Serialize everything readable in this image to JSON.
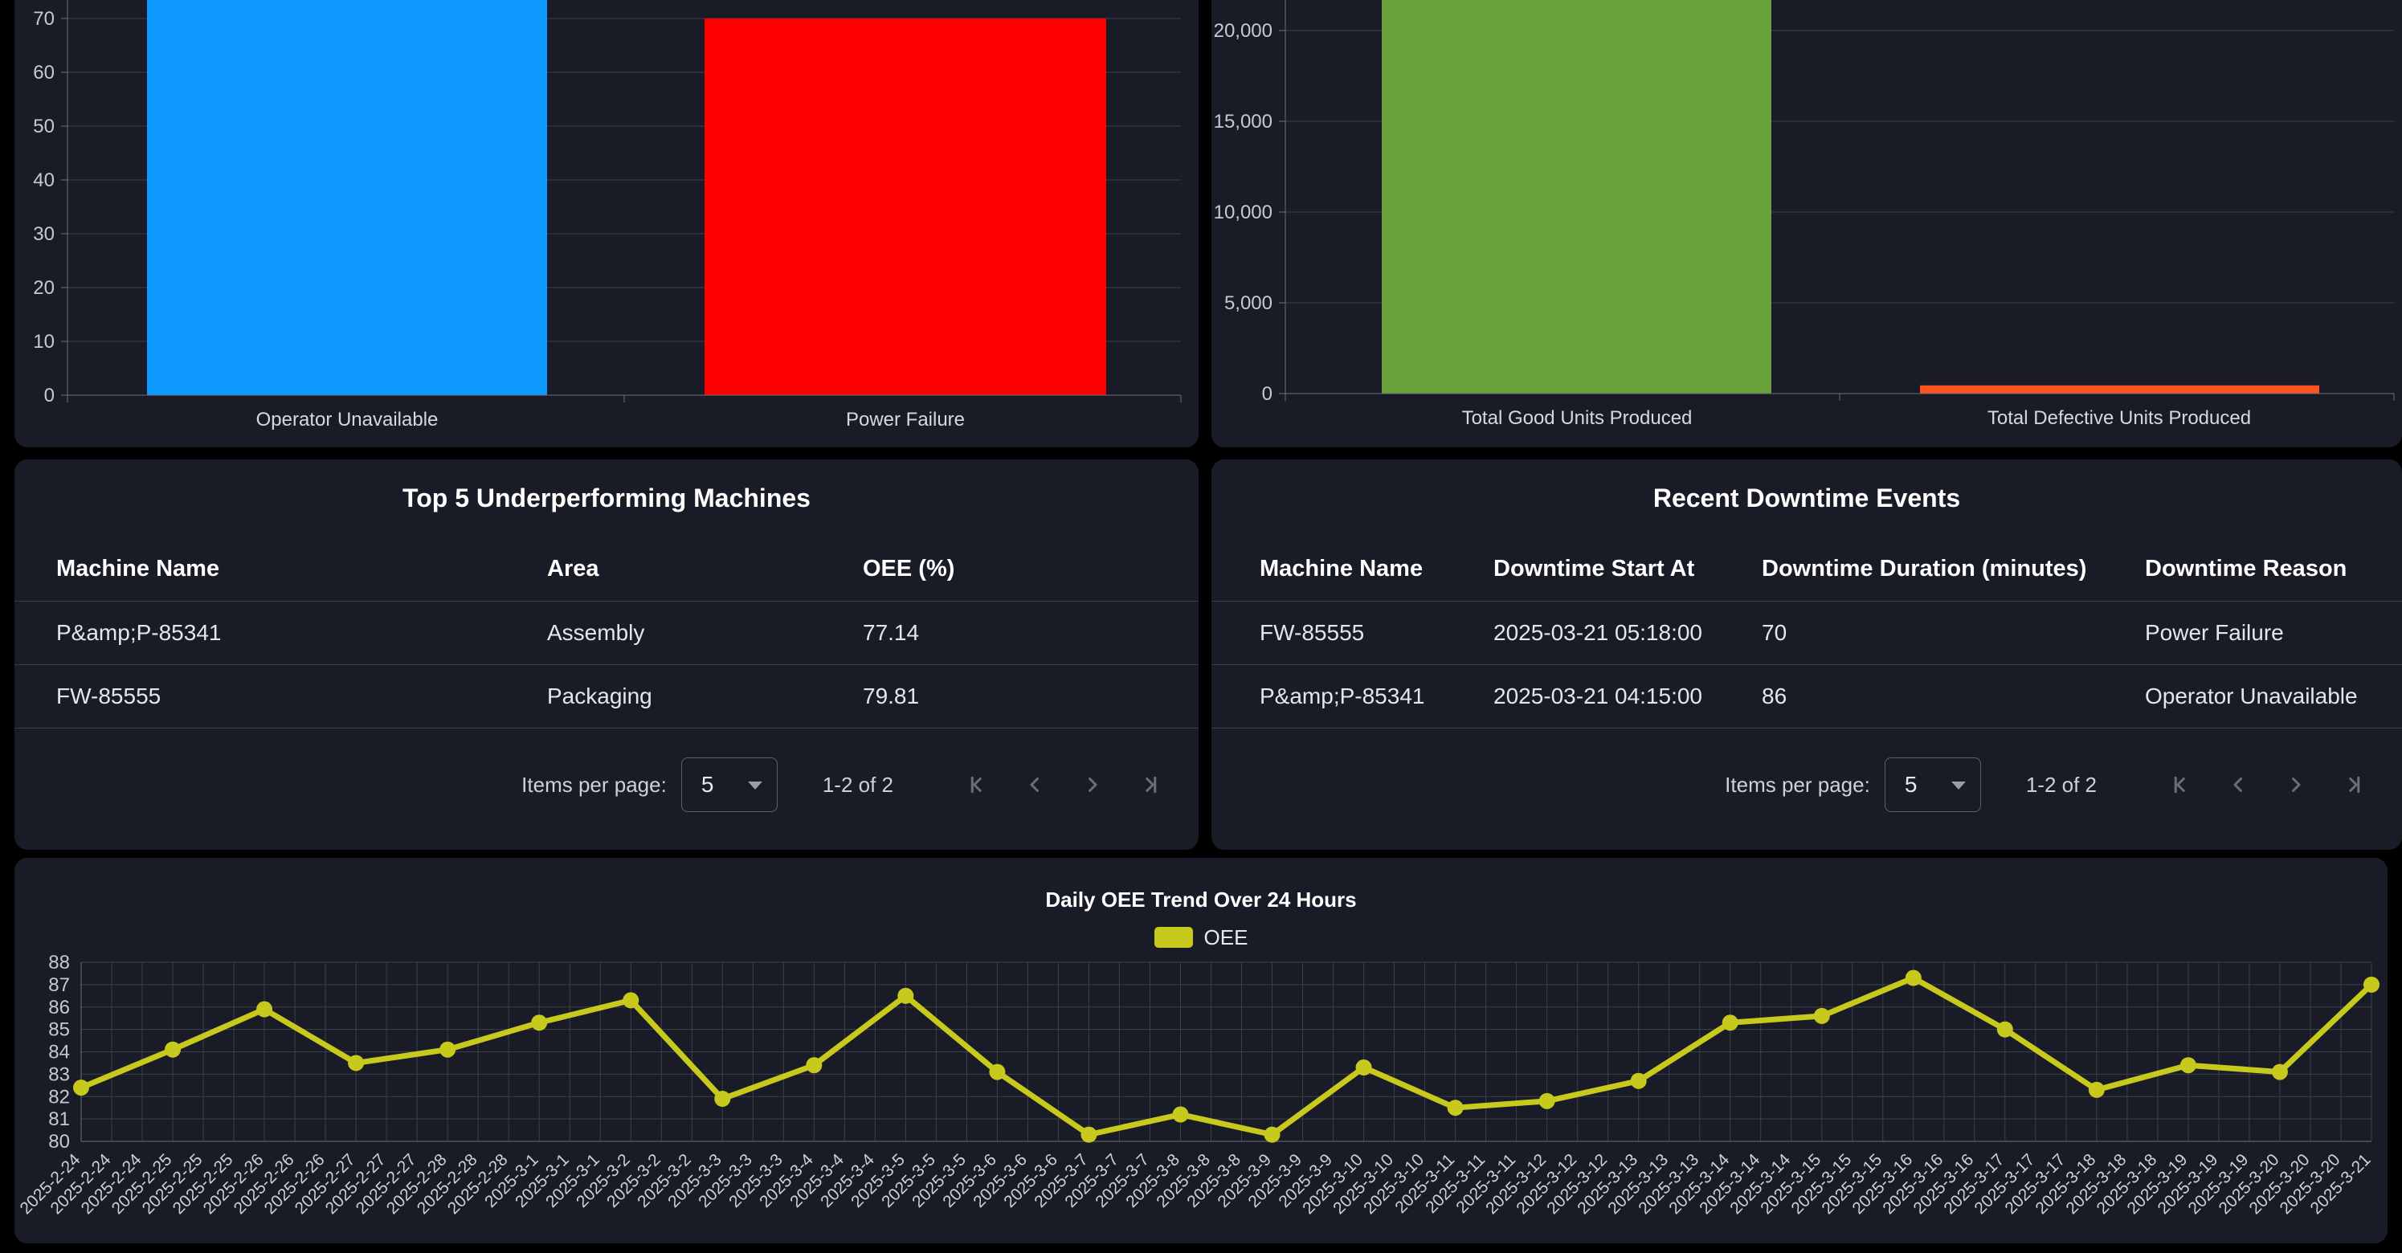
{
  "colors": {
    "page_bg": "#000000",
    "panel_bg": "#191c26",
    "grid_line": "#3c4049",
    "axis_line": "#6d707a",
    "tick_text": "#c6c9ce",
    "bar_blue": "#0d99ff",
    "bar_red": "#fe0000",
    "bar_green": "#68a03a",
    "bar_orange": "#ff5221",
    "line_yellow": "#c8c91d"
  },
  "chart_data": [
    {
      "id": "downtime-by-reason",
      "type": "bar",
      "categories": [
        "Operator Unavailable",
        "Power Failure"
      ],
      "values": [
        86,
        70
      ],
      "bar_colors": [
        "#0d99ff",
        "#fe0000"
      ],
      "ylabel": "",
      "xlabel": "",
      "ylim": [
        0,
        90
      ],
      "y_ticks": [
        {
          "v": 0,
          "label": "0"
        },
        {
          "v": 10,
          "label": "10"
        },
        {
          "v": 20,
          "label": "20"
        },
        {
          "v": 30,
          "label": "30"
        },
        {
          "v": 40,
          "label": "40"
        },
        {
          "v": 50,
          "label": "50"
        },
        {
          "v": 60,
          "label": "60"
        },
        {
          "v": 70,
          "label": "70"
        }
      ],
      "grid": true,
      "note": "top of chart cut off at screenshot edge"
    },
    {
      "id": "units-produced",
      "type": "bar",
      "categories": [
        "Total Good Units Produced",
        "Total Defective Units Produced"
      ],
      "values": [
        21700,
        450
      ],
      "bar_colors": [
        "#68a03a",
        "#ff5221"
      ],
      "ylabel": "",
      "xlabel": "",
      "ylim": [
        0,
        21700
      ],
      "y_ticks": [
        {
          "v": 0,
          "label": "0"
        },
        {
          "v": 5000,
          "label": "5,000"
        },
        {
          "v": 10000,
          "label": "10,000"
        },
        {
          "v": 15000,
          "label": "15,000"
        },
        {
          "v": 20000,
          "label": "20,000"
        }
      ],
      "grid": true,
      "note": "top of chart cut off at screenshot edge"
    },
    {
      "id": "oee-trend",
      "type": "line",
      "title": "Daily OEE Trend Over 24 Hours",
      "legend": [
        "OEE"
      ],
      "line_color": "#c8c91d",
      "categories": [
        "2025-2-24",
        "2025-2-25",
        "2025-2-26",
        "2025-2-27",
        "2025-2-28",
        "2025-3-1",
        "2025-3-2",
        "2025-3-3",
        "2025-3-4",
        "2025-3-5",
        "2025-3-6",
        "2025-3-7",
        "2025-3-8",
        "2025-3-9",
        "2025-3-10",
        "2025-3-11",
        "2025-3-12",
        "2025-3-13",
        "2025-3-14",
        "2025-3-15",
        "2025-3-16",
        "2025-3-17",
        "2025-3-18",
        "2025-3-19",
        "2025-3-20",
        "2025-3-21"
      ],
      "values": [
        82.4,
        84.1,
        85.9,
        83.5,
        84.1,
        85.3,
        86.3,
        81.9,
        83.4,
        86.5,
        83.1,
        80.3,
        81.2,
        80.3,
        83.3,
        81.5,
        81.8,
        82.7,
        85.3,
        85.6,
        87.3,
        85.0,
        82.3,
        83.4,
        83.1,
        87.0
      ],
      "ylim": [
        80,
        88
      ],
      "y_ticks": [
        80,
        81,
        82,
        83,
        84,
        85,
        86,
        87,
        88
      ],
      "x_label_repeat": 3,
      "grid": "full-lattice",
      "legend_position": "top-center"
    }
  ],
  "tables": {
    "underperforming": {
      "title": "Top 5 Underperforming Machines",
      "columns": [
        "Machine Name",
        "Area",
        "OEE (%)"
      ],
      "rows": [
        [
          "P&amp;P-85341",
          "Assembly",
          "77.14"
        ],
        [
          "FW-85555",
          "Packaging",
          "79.81"
        ]
      ]
    },
    "downtime_events": {
      "title": "Recent Downtime Events",
      "columns": [
        "Machine Name",
        "Downtime Start At",
        "Downtime Duration (minutes)",
        "Downtime Reason"
      ],
      "rows": [
        [
          "FW-85555",
          "2025-03-21 05:18:00",
          "70",
          "Power Failure"
        ],
        [
          "P&amp;P-85341",
          "2025-03-21 04:15:00",
          "86",
          "Operator Unavailable"
        ]
      ]
    }
  },
  "paginator": {
    "items_per_page_label": "Items per page:",
    "page_size": "5",
    "range_label": "1-2 of 2",
    "icons": [
      "first-page-icon",
      "previous-page-icon",
      "next-page-icon",
      "last-page-icon"
    ]
  }
}
